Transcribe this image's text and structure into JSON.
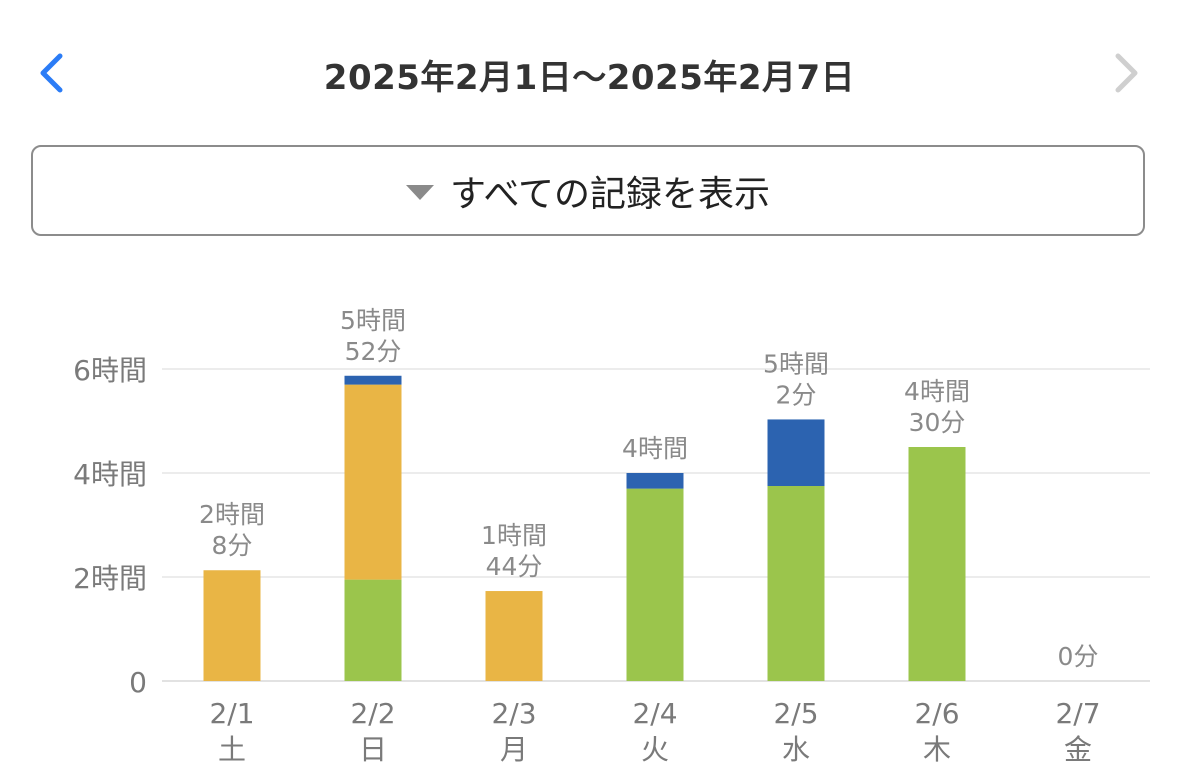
{
  "header": {
    "date_range": "2025年2月1日〜2025年2月7日",
    "prev_icon": "chevron-left-icon",
    "next_icon": "chevron-right-icon",
    "prev_color": "#2b7cf6",
    "next_color": "#cfcfcf"
  },
  "filter": {
    "label": "すべての記録を表示",
    "icon": "triangle-down-icon"
  },
  "chart_data": {
    "type": "bar",
    "stacked": true,
    "categories": [
      "2/1",
      "2/2",
      "2/3",
      "2/4",
      "2/5",
      "2/6",
      "2/7"
    ],
    "weekdays": [
      "土",
      "日",
      "月",
      "火",
      "水",
      "木",
      "金"
    ],
    "series": [
      {
        "color": "#9bc54c",
        "values": [
          0,
          1.95,
          0,
          3.7,
          3.75,
          4.5,
          0
        ]
      },
      {
        "color": "#e9b545",
        "values": [
          2.13,
          3.75,
          1.73,
          0,
          0,
          0,
          0
        ]
      },
      {
        "color": "#2c63b0",
        "values": [
          0,
          0.17,
          0,
          0.3,
          1.28,
          0,
          0
        ]
      }
    ],
    "totals_hours": [
      2.13,
      5.87,
      1.73,
      4.0,
      5.03,
      4.5,
      0
    ],
    "total_labels": [
      [
        "2時間",
        "8分"
      ],
      [
        "5時間",
        "52分"
      ],
      [
        "1時間",
        "44分"
      ],
      [
        "4時間"
      ],
      [
        "5時間",
        "2分"
      ],
      [
        "4時間",
        "30分"
      ],
      [
        "0分"
      ]
    ],
    "y_ticks": [
      {
        "value": 0,
        "label": "0"
      },
      {
        "value": 2,
        "label": "2時間"
      },
      {
        "value": 4,
        "label": "4時間"
      },
      {
        "value": 6,
        "label": "6時間"
      }
    ],
    "ylim": [
      0,
      6
    ],
    "grid": true
  }
}
